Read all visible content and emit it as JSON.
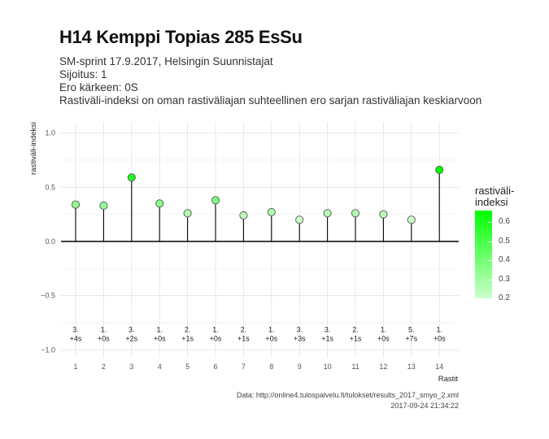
{
  "header": {
    "title": "H14 Kemppi Topias 285 EsSu",
    "subtitle_lines": [
      "SM-sprint 17.9.2017, Helsingin Suunnistajat",
      "Sijoitus: 1",
      "Ero kärkeen: 0S",
      "Rastiväli-indeksi on oman rastiväliajan suhteellinen ero sarjan rastiväliajan keskiarvoon"
    ]
  },
  "chart_data": {
    "type": "lollipop",
    "xlabel": "Rastit",
    "ylabel": "rastiväli-indeksi",
    "x": [
      1,
      2,
      3,
      4,
      5,
      6,
      7,
      8,
      9,
      10,
      11,
      12,
      13,
      14
    ],
    "values": [
      0.34,
      0.33,
      0.59,
      0.35,
      0.26,
      0.38,
      0.24,
      0.27,
      0.2,
      0.26,
      0.26,
      0.25,
      0.2,
      0.66
    ],
    "ylim": [
      -1.05,
      1.1
    ],
    "y_ticks": [
      -1.0,
      -0.5,
      0.0,
      0.5,
      1.0
    ],
    "y_tick_labels": [
      "−1.0",
      "−0.5",
      "0.0",
      "0.5",
      "1.0"
    ],
    "x_tick_labels": [
      "1",
      "2",
      "3",
      "4",
      "5",
      "6",
      "7",
      "8",
      "9",
      "10",
      "11",
      "12",
      "13",
      "14"
    ],
    "annotations": [
      {
        "rank": "3.",
        "diff": "+4s"
      },
      {
        "rank": "1.",
        "diff": "+0s"
      },
      {
        "rank": "3.",
        "diff": "+2s"
      },
      {
        "rank": "1.",
        "diff": "+0s"
      },
      {
        "rank": "2.",
        "diff": "+1s"
      },
      {
        "rank": "1.",
        "diff": "+0s"
      },
      {
        "rank": "2.",
        "diff": "+1s"
      },
      {
        "rank": "1.",
        "diff": "+0s"
      },
      {
        "rank": "3.",
        "diff": "+3s"
      },
      {
        "rank": "3.",
        "diff": "+1s"
      },
      {
        "rank": "2.",
        "diff": "+1s"
      },
      {
        "rank": "1.",
        "diff": "+0s"
      },
      {
        "rank": "5.",
        "diff": "+7s"
      },
      {
        "rank": "1.",
        "diff": "+0s"
      }
    ],
    "annotation_y": -0.92,
    "grid": true,
    "legend": {
      "title_lines": [
        "rastiväli-",
        "indeksi"
      ],
      "position": "right",
      "range": [
        0.2,
        0.66
      ],
      "ticks": [
        0.6,
        0.5,
        0.4,
        0.3,
        0.2
      ],
      "tick_labels": [
        "0.6",
        "0.5",
        "0.4",
        "0.3",
        "0.2"
      ],
      "color_low": "#ccffcc",
      "color_high": "#00ff00"
    }
  },
  "caption": {
    "source": "Data: http://online4.tulospalvelu.fi/tulokset/results_2017_smyo_2.xml",
    "timestamp": "2017-09-24 21:34:22"
  }
}
